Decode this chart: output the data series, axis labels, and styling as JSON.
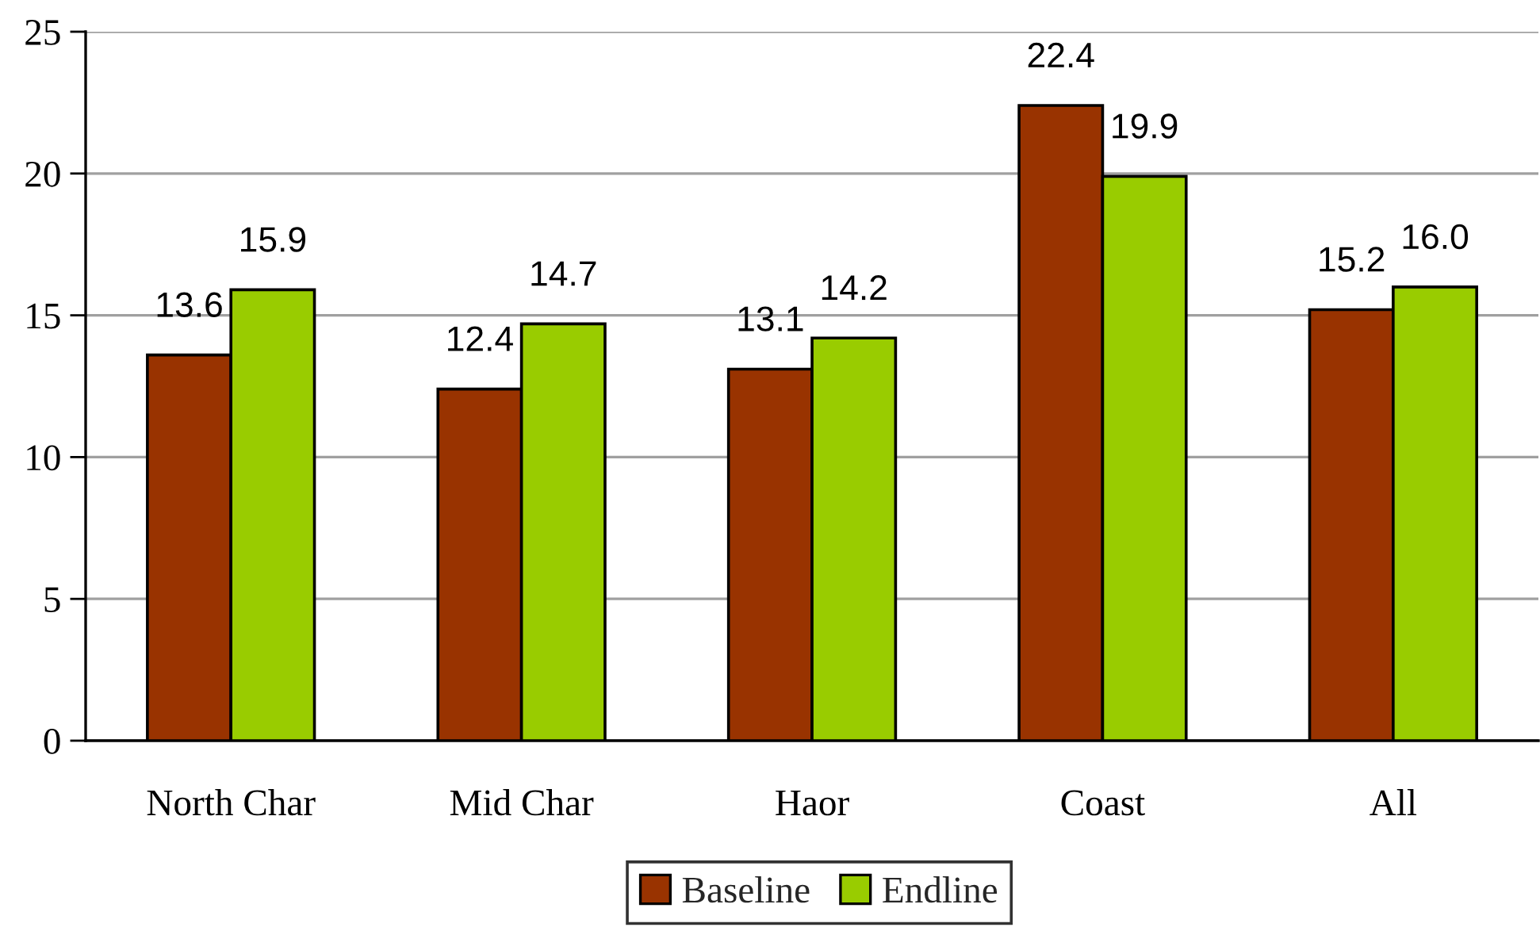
{
  "chart_data": {
    "type": "bar",
    "categories": [
      "North Char",
      "Mid Char",
      "Haor",
      "Coast",
      "All"
    ],
    "series": [
      {
        "name": "Baseline",
        "color": "#993300",
        "values": [
          13.6,
          12.4,
          13.1,
          22.4,
          15.2
        ],
        "value_labels": [
          "13.6",
          "12.4",
          "13.1",
          "22.4",
          "15.2"
        ]
      },
      {
        "name": "Endline",
        "color": "#99cc00",
        "values": [
          15.9,
          14.7,
          14.2,
          19.9,
          16.0
        ],
        "value_labels": [
          "15.9",
          "14.7",
          "14.2",
          "19.9",
          "16.0"
        ]
      }
    ],
    "ylim": [
      0,
      25
    ],
    "yticks": [
      0,
      5,
      10,
      15,
      20,
      25
    ],
    "grid": "y",
    "legend": "bottom"
  }
}
